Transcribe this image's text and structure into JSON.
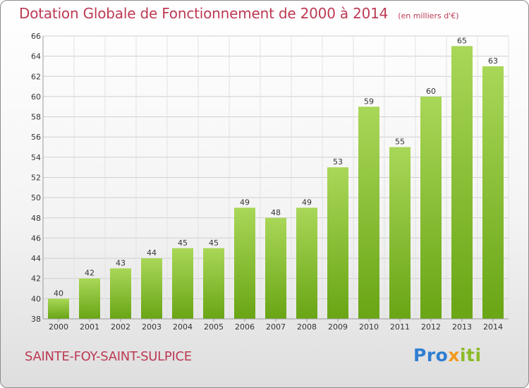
{
  "header": {
    "title": "Dotation Globale de Fonctionnement de 2000 à 2014",
    "subtitle": "(en milliers d'€)"
  },
  "footer": {
    "commune": "SAINTE-FOY-SAINT-SULPICE",
    "logo_p": "Pro",
    "logo_x": "x",
    "logo_iti": "iti"
  },
  "colors": {
    "bar_light": "#a9d758",
    "bar_dark": "#69a515",
    "title": "#bc3a53",
    "logo_blue": "#2e7fd2",
    "logo_orange": "#f39a1d",
    "logo_green": "#8cbb28"
  },
  "chart_data": {
    "type": "bar",
    "title": "Dotation Globale de Fonctionnement de 2000 à 2014",
    "subtitle": "(en milliers d'€)",
    "categories": [
      "2000",
      "2001",
      "2002",
      "2003",
      "2004",
      "2005",
      "2006",
      "2007",
      "2008",
      "2009",
      "2010",
      "2011",
      "2012",
      "2013",
      "2014"
    ],
    "values": [
      40,
      42,
      43,
      44,
      45,
      45,
      49,
      48,
      49,
      53,
      59,
      55,
      60,
      65,
      63
    ],
    "ylim": [
      38,
      66
    ],
    "yticks": [
      38,
      40,
      42,
      44,
      46,
      48,
      50,
      52,
      54,
      56,
      58,
      60,
      62,
      64,
      66
    ],
    "xlabel": "",
    "ylabel": "",
    "grid": true,
    "data_labels": true
  }
}
